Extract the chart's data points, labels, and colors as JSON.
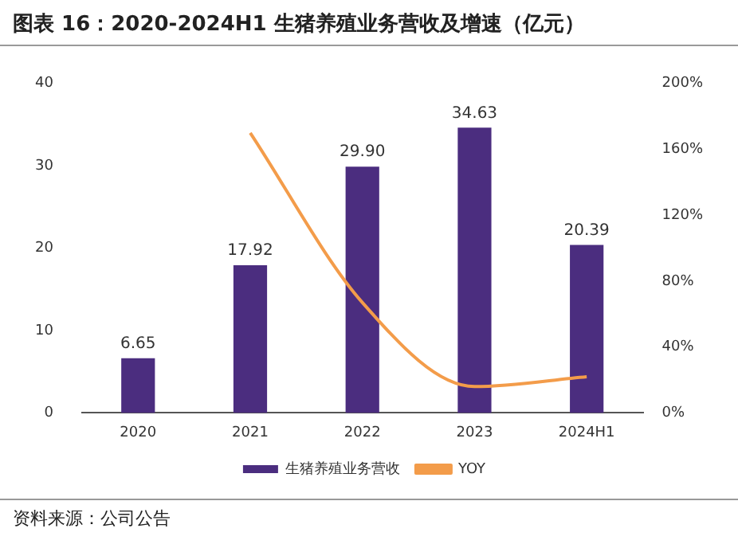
{
  "chart_data": {
    "type": "bar",
    "title": "图表 16：2020-2024H1 生猪养殖业务营收及增速（亿元）",
    "annotations": [
      "资料来源：公司公告"
    ],
    "categories": [
      "2020",
      "2021",
      "2022",
      "2023",
      "2024H1"
    ],
    "series": [
      {
        "name": "生猪养殖业务营收",
        "color": "#4b2d7f",
        "values": [
          6.65,
          17.92,
          29.9,
          34.63,
          20.39
        ],
        "value_labels": [
          "6.65",
          "17.92",
          "29.90",
          "34.63",
          "20.39"
        ]
      },
      {
        "name": "YOY",
        "type": "line",
        "axis": "y2",
        "color": "#f39c4a",
        "values": [
          null,
          170,
          67,
          16,
          22
        ],
        "marker": "none"
      }
    ],
    "ylim": [
      0,
      40
    ],
    "yticks": [
      0,
      10,
      20,
      30,
      40
    ],
    "y2lim": [
      0,
      200
    ],
    "y2ticks": [
      {
        "value": 0,
        "label": "0%"
      },
      {
        "value": 40,
        "label": "40%"
      },
      {
        "value": 80,
        "label": "80%"
      },
      {
        "value": 120,
        "label": "120%"
      },
      {
        "value": 160,
        "label": "160%"
      },
      {
        "value": 200,
        "label": "200%"
      }
    ],
    "grid": false,
    "legend": "bottom"
  }
}
